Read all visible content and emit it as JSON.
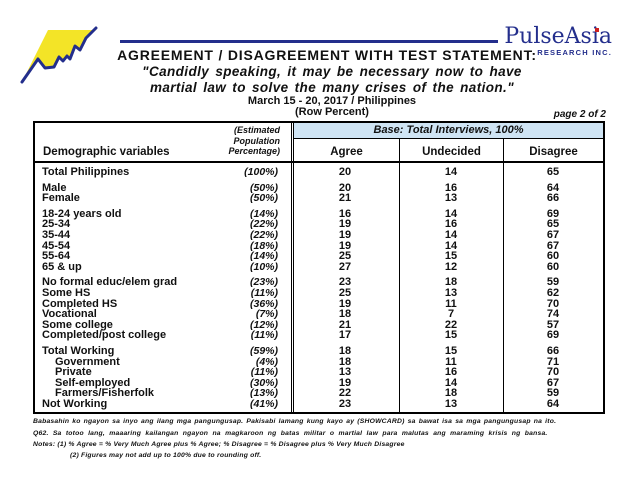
{
  "brand": {
    "name": "PulseAsia",
    "subtitle": "RESEARCH INC."
  },
  "header": {
    "title": "AGREEMENT / DISAGREEMENT WITH TEST STATEMENT:",
    "quote_line1": "\"Candidly speaking, it may be necessary now to have",
    "quote_line2": "martial law to solve the many crises of the nation.\"",
    "date_location": "March 15 - 20, 2017 / Philippines",
    "metric": "(Row Percent)",
    "page_label": "page 2 of 2"
  },
  "table": {
    "col1_header": "Demographic variables",
    "col2_header_lines": [
      "(Estimated",
      "Population",
      "Percentage)"
    ],
    "base_header": "Base: Total Interviews, 100%",
    "columns": [
      "Agree",
      "Undecided",
      "Disagree"
    ],
    "groups": [
      {
        "rows": [
          {
            "label": "Total Philippines",
            "pct": "(100%)",
            "agree": 20,
            "undecided": 14,
            "disagree": 65,
            "indent": false
          }
        ]
      },
      {
        "rows": [
          {
            "label": "Male",
            "pct": "(50%)",
            "agree": 20,
            "undecided": 16,
            "disagree": 64,
            "indent": false
          },
          {
            "label": "Female",
            "pct": "(50%)",
            "agree": 21,
            "undecided": 13,
            "disagree": 66,
            "indent": false
          }
        ]
      },
      {
        "rows": [
          {
            "label": "18-24 years old",
            "pct": "(14%)",
            "agree": 16,
            "undecided": 14,
            "disagree": 69,
            "indent": false
          },
          {
            "label": "25-34",
            "pct": "(22%)",
            "agree": 19,
            "undecided": 16,
            "disagree": 65,
            "indent": false
          },
          {
            "label": "35-44",
            "pct": "(22%)",
            "agree": 19,
            "undecided": 14,
            "disagree": 67,
            "indent": false
          },
          {
            "label": "45-54",
            "pct": "(18%)",
            "agree": 19,
            "undecided": 14,
            "disagree": 67,
            "indent": false
          },
          {
            "label": "55-64",
            "pct": "(14%)",
            "agree": 25,
            "undecided": 15,
            "disagree": 60,
            "indent": false
          },
          {
            "label": "65 & up",
            "pct": "(10%)",
            "agree": 27,
            "undecided": 12,
            "disagree": 60,
            "indent": false
          }
        ]
      },
      {
        "rows": [
          {
            "label": "No formal educ/elem grad",
            "pct": "(23%)",
            "agree": 23,
            "undecided": 18,
            "disagree": 59,
            "indent": false
          },
          {
            "label": "Some HS",
            "pct": "(11%)",
            "agree": 25,
            "undecided": 13,
            "disagree": 62,
            "indent": false
          },
          {
            "label": "Completed HS",
            "pct": "(36%)",
            "agree": 19,
            "undecided": 11,
            "disagree": 70,
            "indent": false
          },
          {
            "label": "Vocational",
            "pct": "(7%)",
            "agree": 18,
            "undecided": 7,
            "disagree": 74,
            "indent": false
          },
          {
            "label": "Some college",
            "pct": "(12%)",
            "agree": 21,
            "undecided": 22,
            "disagree": 57,
            "indent": false
          },
          {
            "label": "Completed/post college",
            "pct": "(11%)",
            "agree": 17,
            "undecided": 15,
            "disagree": 69,
            "indent": false
          }
        ]
      },
      {
        "rows": [
          {
            "label": "Total Working",
            "pct": "(59%)",
            "agree": 18,
            "undecided": 15,
            "disagree": 66,
            "indent": false
          },
          {
            "label": "Government",
            "pct": "(4%)",
            "agree": 18,
            "undecided": 11,
            "disagree": 71,
            "indent": true
          },
          {
            "label": "Private",
            "pct": "(11%)",
            "agree": 13,
            "undecided": 16,
            "disagree": 70,
            "indent": true
          },
          {
            "label": "Self-employed",
            "pct": "(30%)",
            "agree": 19,
            "undecided": 14,
            "disagree": 67,
            "indent": true
          },
          {
            "label": "Farmers/Fisherfolk",
            "pct": "(13%)",
            "agree": 22,
            "undecided": 18,
            "disagree": 59,
            "indent": true
          },
          {
            "label": "Not Working",
            "pct": "(41%)",
            "agree": 23,
            "undecided": 13,
            "disagree": 64,
            "indent": false
          }
        ]
      }
    ]
  },
  "footnotes": {
    "intro": "Babasahin ko ngayon sa inyo ang ilang mga pangungusap. Pakisabi lamang kung kayo ay (SHOWCARD) sa bawat isa sa mga pangungusap na ito.",
    "question": "Q62. Sa totoo lang, maaaring kailangan ngayon na magkaroon ng batas militar o martial law para malutas ang maraming krisis ng bansa.",
    "note1": "Notes: (1) % Agree = % Very Much Agree plus % Agree; % Disagree = % Disagree plus % Very Much Disagree",
    "note2": "(2) Figures may not add up to 100% due to rounding off."
  },
  "colors": {
    "navy": "#232e8c",
    "band_blue": "#cfe4f4",
    "logo_yellow": "#f3e427",
    "accent_red": "#cc2222"
  }
}
